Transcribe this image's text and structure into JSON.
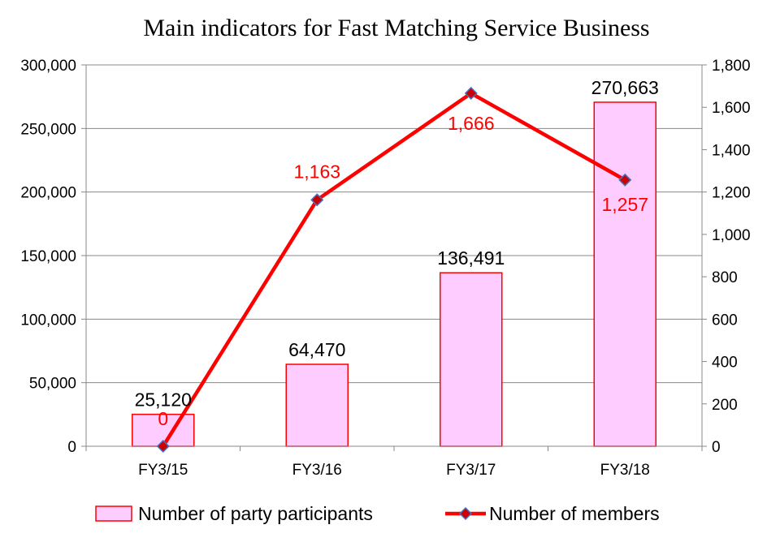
{
  "chart_data": {
    "type": "bar",
    "title": "Main indicators for Fast Matching Service Business",
    "categories": [
      "FY3/15",
      "FY3/16",
      "FY3/17",
      "FY3/18"
    ],
    "series": [
      {
        "name": "Number of party participants",
        "type": "bar",
        "axis": "left",
        "values": [
          25120,
          64470,
          136491,
          270663
        ],
        "labels": [
          "25,120",
          "64,470",
          "136,491",
          "270,663"
        ],
        "color": "#ff0000",
        "fill": "#ffccff"
      },
      {
        "name": "Number of members",
        "type": "line",
        "axis": "right",
        "values": [
          0,
          1163,
          1666,
          1257
        ],
        "labels": [
          "0",
          "1,163",
          "1,666",
          "1,257"
        ],
        "color": "#ff0000",
        "marker_color": "#cc0000",
        "marker_edge": "#4472c4"
      }
    ],
    "y_left": {
      "ylim": [
        0,
        300000
      ],
      "ticks": [
        0,
        50000,
        100000,
        150000,
        200000,
        250000,
        300000
      ],
      "tick_labels": [
        "0",
        "50,000",
        "100,000",
        "150,000",
        "200,000",
        "250,000",
        "300,000"
      ]
    },
    "y_right": {
      "ylim": [
        0,
        1800
      ],
      "ticks": [
        0,
        200,
        400,
        600,
        800,
        1000,
        1200,
        1400,
        1600,
        1800
      ],
      "tick_labels": [
        "0",
        "200",
        "400",
        "600",
        "800",
        "1,000",
        "1,200",
        "1,400",
        "1,600",
        "1,800"
      ]
    },
    "grid": true,
    "legend_position": "bottom"
  }
}
